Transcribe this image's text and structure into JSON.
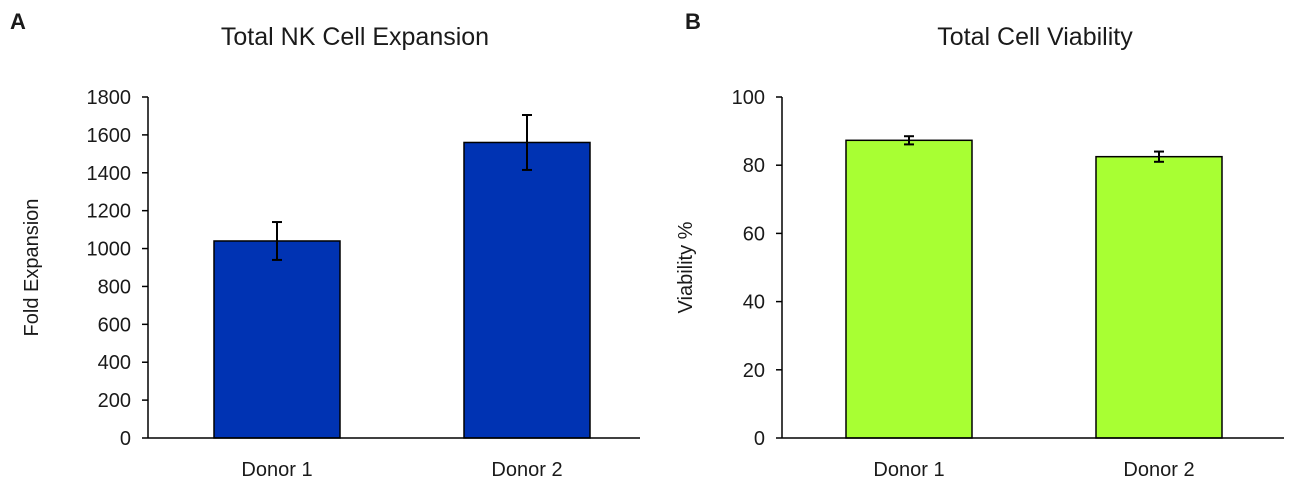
{
  "chart_data": [
    {
      "type": "bar",
      "panel_label": "A",
      "title": "Total NK Cell Expansion",
      "xlabel": "",
      "ylabel": "Fold Expansion",
      "categories": [
        "Donor 1",
        "Donor 2"
      ],
      "values": [
        1040,
        1560
      ],
      "errors": [
        100,
        145
      ],
      "ylim": [
        0,
        1800
      ],
      "yticks": [
        0,
        200,
        400,
        600,
        800,
        1000,
        1200,
        1400,
        1600,
        1800
      ],
      "grid": false,
      "color": "#0033b3"
    },
    {
      "type": "bar",
      "panel_label": "B",
      "title": "Total Cell Viability",
      "xlabel": "",
      "ylabel": "Viability %",
      "categories": [
        "Donor 1",
        "Donor 2"
      ],
      "values": [
        87.3,
        82.5
      ],
      "errors": [
        1.2,
        1.5
      ],
      "ylim": [
        0,
        100
      ],
      "yticks": [
        0,
        20,
        40,
        60,
        80,
        100
      ],
      "grid": false,
      "color": "#a8ff33"
    }
  ]
}
